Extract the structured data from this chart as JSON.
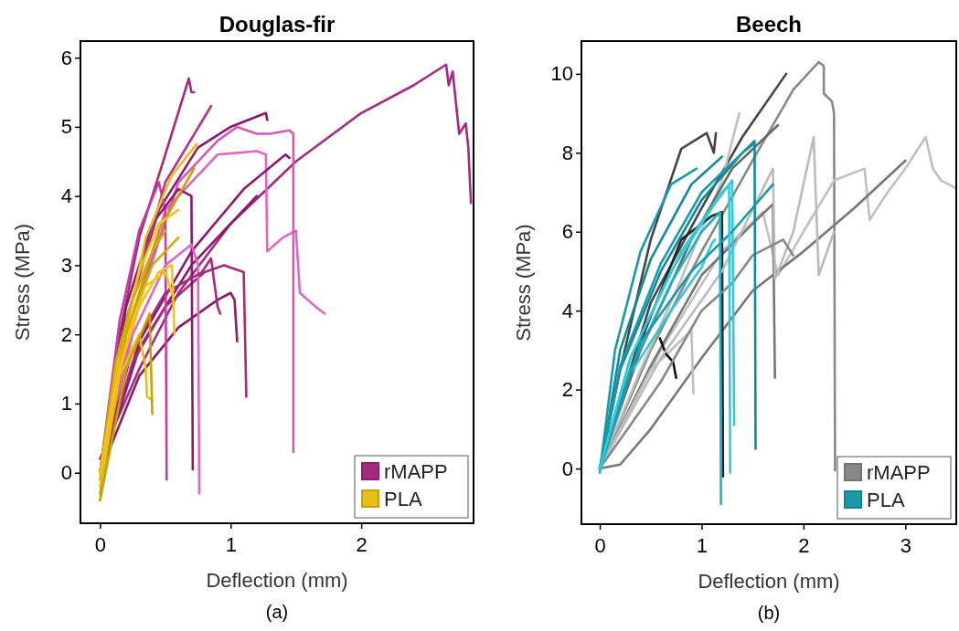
{
  "chart_data": [
    {
      "type": "line",
      "title": "Douglas-fir",
      "xlabel": "Deflection (mm)",
      "ylabel": "Stress (MPa)",
      "annotations": [
        "(a)"
      ],
      "legend": "bottom right",
      "xlim": [
        -0.15,
        2.86
      ],
      "ylim": [
        -0.73,
        6.24
      ],
      "xticks": [
        0,
        1,
        2
      ],
      "yticks": [
        0,
        1,
        2,
        3,
        4,
        5,
        6
      ],
      "series": [
        {
          "name": "rMAPP",
          "color": "#a6287f",
          "x": [
            0,
            0.3,
            0.6,
            1.0,
            1.5,
            2.0,
            2.4,
            2.65,
            2.67,
            2.7,
            2.75,
            2.8,
            2.82,
            2.84
          ],
          "values": [
            0.2,
            1.5,
            2.6,
            3.6,
            4.5,
            5.2,
            5.6,
            5.9,
            5.6,
            5.8,
            4.9,
            5.05,
            4.7,
            3.9
          ]
        },
        {
          "color": "#a6287f",
          "x": [
            0,
            0.15,
            0.3,
            0.5,
            0.68,
            0.7,
            0.72
          ],
          "values": [
            0,
            2,
            3.4,
            4.6,
            5.7,
            5.5,
            5.5
          ]
        },
        {
          "color": "#8b1a6b",
          "x": [
            0,
            0.2,
            0.45,
            0.75,
            1.0,
            1.27,
            1.28
          ],
          "values": [
            0,
            2.2,
            3.8,
            4.7,
            5.0,
            5.2,
            5.1
          ]
        },
        {
          "color": "#e066c0",
          "x": [
            0,
            0.2,
            0.5,
            0.9,
            1.2,
            1.27,
            1.28,
            1.4,
            1.5,
            1.53,
            1.65,
            1.72
          ],
          "values": [
            0,
            1.8,
            3.8,
            4.6,
            4.65,
            4.6,
            3.2,
            3.4,
            3.5,
            2.6,
            2.4,
            2.3
          ]
        },
        {
          "color": "#d957b5",
          "x": [
            0,
            0.3,
            0.6,
            0.9,
            1.05,
            1.2,
            1.3,
            1.45,
            1.48,
            1.48
          ],
          "values": [
            0,
            2.5,
            4.2,
            4.8,
            5.0,
            4.9,
            4.9,
            4.95,
            4.9,
            0.3
          ]
        },
        {
          "color": "#8b1a6b",
          "x": [
            0,
            0.3,
            0.7,
            1.1,
            1.42,
            1.45
          ],
          "values": [
            0,
            1.9,
            3.2,
            4.1,
            4.6,
            4.55
          ]
        },
        {
          "color": "#8b1a6b",
          "x": [
            0,
            0.3,
            0.7,
            1.0,
            1.2
          ],
          "values": [
            0,
            1.8,
            3.0,
            3.6,
            4.0
          ]
        },
        {
          "color": "#a6287f",
          "x": [
            0,
            0.25,
            0.5,
            0.8,
            0.95,
            1.1,
            1.12
          ],
          "values": [
            0,
            1.6,
            2.4,
            2.9,
            3.0,
            2.9,
            1.1
          ]
        },
        {
          "color": "#8b1a6b",
          "x": [
            0,
            0.3,
            0.6,
            0.9,
            1.0,
            1.03,
            1.05
          ],
          "values": [
            0,
            1.4,
            2.1,
            2.5,
            2.6,
            2.5,
            1.9
          ]
        },
        {
          "color": "#c040a0",
          "x": [
            0,
            0.15,
            0.3,
            0.45,
            0.5,
            0.51
          ],
          "values": [
            0,
            2.2,
            3.5,
            4.2,
            3.8,
            -0.1
          ]
        },
        {
          "color": "#8b1a6b",
          "x": [
            0,
            0.2,
            0.4,
            0.6,
            0.7,
            0.71
          ],
          "values": [
            0,
            2.4,
            3.6,
            4.1,
            4.0,
            0.05
          ]
        },
        {
          "color": "#e066c0",
          "x": [
            0,
            0.25,
            0.5,
            0.7,
            0.75,
            0.76
          ],
          "values": [
            0,
            2.0,
            3.0,
            3.3,
            3.0,
            -0.3
          ]
        },
        {
          "color": "#a6287f",
          "x": [
            0,
            0.25,
            0.5,
            0.78,
            0.85,
            0.9,
            0.92
          ],
          "values": [
            0,
            1.8,
            2.6,
            2.9,
            3.1,
            2.4,
            2.3
          ]
        },
        {
          "color": "#b03590",
          "x": [
            0,
            0.2,
            0.5,
            0.85
          ],
          "values": [
            0,
            2.2,
            4.2,
            5.3
          ]
        },
        {
          "name": "PLA",
          "color": "#e8bf14",
          "x": [
            0,
            0.15,
            0.35,
            0.55,
            0.74
          ],
          "values": [
            -0.4,
            1.6,
            3.4,
            4.3,
            4.75
          ]
        },
        {
          "color": "#c9a200",
          "x": [
            0,
            0.2,
            0.45,
            0.72
          ],
          "values": [
            -0.3,
            2.0,
            3.5,
            4.4
          ]
        },
        {
          "color": "#f0c419",
          "x": [
            0,
            0.15,
            0.3,
            0.45,
            0.6
          ],
          "values": [
            0,
            1.8,
            2.9,
            3.6,
            3.8
          ]
        },
        {
          "color": "#d4aa00",
          "x": [
            0,
            0.2,
            0.4,
            0.6
          ],
          "values": [
            -0.1,
            2.0,
            3.0,
            3.4
          ]
        },
        {
          "color": "#f0c419",
          "x": [
            0,
            0.15,
            0.3,
            0.45,
            0.55,
            0.57
          ],
          "values": [
            0,
            1.5,
            2.4,
            2.9,
            3.0,
            2.0
          ]
        },
        {
          "color": "#e8bf14",
          "x": [
            0,
            0.15,
            0.3,
            0.35,
            0.36,
            0.4
          ],
          "values": [
            -0.2,
            1.4,
            2.0,
            1.5,
            1.1,
            1.05
          ]
        },
        {
          "color": "#c9a200",
          "x": [
            0,
            0.2,
            0.38,
            0.4
          ],
          "values": [
            -0.4,
            1.5,
            2.3,
            0.85
          ]
        },
        {
          "color": "#d4aa00",
          "x": [
            0,
            0.12,
            0.25,
            0.4,
            0.5
          ],
          "values": [
            0,
            1.6,
            2.5,
            3.2,
            3.5
          ]
        },
        {
          "color": "#f0c419",
          "x": [
            0,
            0.1,
            0.25,
            0.35,
            0.5,
            0.55
          ],
          "values": [
            0,
            1.1,
            2.2,
            2.7,
            2.9,
            2.6
          ]
        }
      ]
    },
    {
      "type": "line",
      "title": "Beech",
      "xlabel": "Deflection (mm)",
      "ylabel": "Stress (MPa)",
      "annotations": [
        "(b)"
      ],
      "legend": "bottom right",
      "xlim": [
        -0.18,
        3.5
      ],
      "ylim": [
        -1.41,
        10.83
      ],
      "xticks": [
        0,
        1,
        2,
        3
      ],
      "yticks": [
        0,
        2,
        4,
        6,
        8,
        10
      ],
      "series": [
        {
          "name": "rMAPP",
          "color": "#888888",
          "x": [
            0,
            0.5,
            1.0,
            1.5,
            1.9,
            2.15,
            2.2,
            2.2,
            2.28,
            2.3,
            2.31
          ],
          "values": [
            0,
            3.0,
            5.5,
            7.8,
            9.6,
            10.3,
            10.2,
            9.5,
            9.3,
            9.0,
            -0.05
          ]
        },
        {
          "color": "#444444",
          "x": [
            0,
            0.5,
            1.0,
            1.4,
            1.83
          ],
          "values": [
            0,
            4.2,
            6.6,
            8.4,
            10.0
          ]
        },
        {
          "color": "#c0c0c0",
          "x": [
            0,
            0.6,
            1.2,
            1.6,
            1.75,
            2.0,
            2.3,
            2.6,
            2.65,
            2.8,
            3.0,
            3.2,
            3.27,
            3.35,
            3.5
          ],
          "values": [
            0,
            3.0,
            5.5,
            6.5,
            4.9,
            6.0,
            7.3,
            7.6,
            6.3,
            6.9,
            7.6,
            8.4,
            7.6,
            7.3,
            7.1
          ]
        },
        {
          "color": "#777777",
          "x": [
            0,
            0.2,
            0.5,
            1.0,
            1.5,
            2.0,
            2.5,
            3.0
          ],
          "values": [
            0,
            0.1,
            1.0,
            2.8,
            4.5,
            5.5,
            6.6,
            7.8
          ]
        },
        {
          "color": "#444444",
          "x": [
            0,
            0.2,
            0.5,
            0.8,
            1.05,
            1.12,
            1.14
          ],
          "values": [
            0,
            2.5,
            5.8,
            8.1,
            8.5,
            8.0,
            8.5
          ]
        },
        {
          "color": "#c0c0c0",
          "x": [
            0,
            0.4,
            0.8,
            1.2,
            1.37
          ],
          "values": [
            0,
            2.5,
            4.8,
            7.3,
            9.0
          ]
        },
        {
          "color": "#777777",
          "x": [
            0,
            0.5,
            1.0,
            1.5,
            1.7,
            1.72
          ],
          "values": [
            0,
            2.6,
            4.9,
            6.2,
            6.7,
            2.3
          ]
        },
        {
          "color": "#666666",
          "x": [
            0,
            0.4,
            0.9,
            1.3,
            1.75
          ],
          "values": [
            0,
            3.0,
            5.8,
            7.6,
            8.7
          ]
        },
        {
          "color": "#c0c0c0",
          "x": [
            0,
            0.5,
            0.9,
            0.92
          ],
          "values": [
            0,
            2.5,
            3.5,
            1.9
          ]
        },
        {
          "color": "#222222",
          "x": [
            0,
            0.4,
            0.8,
            1.1,
            1.2,
            1.21
          ],
          "values": [
            0,
            3.2,
            5.8,
            6.4,
            6.5,
            -0.2
          ]
        },
        {
          "color": "#111111",
          "x": [
            0.59,
            0.65,
            0.72,
            0.75
          ],
          "values": [
            3.3,
            2.9,
            2.7,
            2.3
          ]
        },
        {
          "color": "#bbbbbb",
          "x": [
            0,
            0.6,
            1.2,
            1.7,
            1.72,
            1.9,
            2.1,
            2.15,
            2.3
          ],
          "values": [
            0,
            2.8,
            5.0,
            7.6,
            4.8,
            6.0,
            8.4,
            4.9,
            6.0
          ]
        },
        {
          "color": "#888888",
          "x": [
            0,
            0.6,
            1.0,
            1.3,
            1.5,
            1.8,
            1.9
          ],
          "values": [
            0,
            2.2,
            4.0,
            4.7,
            5.4,
            5.8,
            5.4
          ]
        },
        {
          "name": "PLA",
          "color": "#1a9aa8",
          "x": [
            0,
            0.15,
            0.4,
            0.7,
            0.95
          ],
          "values": [
            -0.1,
            3.0,
            5.5,
            7.2,
            7.6
          ]
        },
        {
          "color": "#0f8a95",
          "x": [
            0,
            0.2,
            0.5,
            0.9,
            1.2
          ],
          "values": [
            -0.1,
            3.0,
            5.3,
            7.2,
            7.9
          ]
        },
        {
          "color": "#0f8a95",
          "x": [
            0,
            0.2,
            0.6,
            1.0,
            1.4,
            1.52,
            1.53
          ],
          "values": [
            0,
            2.5,
            5.0,
            6.8,
            8.0,
            8.3,
            0.5
          ]
        },
        {
          "color": "#35c8d6",
          "x": [
            0,
            0.3,
            0.7,
            1.1,
            1.3,
            1.32
          ],
          "values": [
            0,
            2.8,
            5.0,
            6.6,
            7.3,
            1.1
          ]
        },
        {
          "color": "#1fb3c2",
          "x": [
            0,
            0.3,
            0.7,
            1.0,
            1.18,
            1.19
          ],
          "values": [
            0,
            2.5,
            4.7,
            6.0,
            6.5,
            -0.9
          ]
        },
        {
          "color": "#35c8d6",
          "x": [
            0,
            0.3,
            0.7,
            1.0,
            1.1,
            1.13
          ],
          "values": [
            -0.1,
            2.4,
            4.0,
            5.1,
            5.7,
            5.8
          ]
        },
        {
          "color": "#1a9aa8",
          "x": [
            0,
            0.4,
            0.9,
            1.3,
            1.7
          ],
          "values": [
            0,
            3.2,
            5.0,
            6.0,
            7.2
          ]
        },
        {
          "color": "#1a9aa8",
          "x": [
            0,
            0.2,
            0.6,
            1.0,
            1.4,
            1.5
          ],
          "values": [
            0,
            2.6,
            5.2,
            7.0,
            8.0,
            8.2
          ]
        },
        {
          "color": "#35c8d6",
          "x": [
            0,
            0.3,
            0.8,
            1.2,
            1.27,
            1.28
          ],
          "values": [
            0,
            2.8,
            5.5,
            7.0,
            7.2,
            -0.1
          ]
        }
      ]
    }
  ]
}
